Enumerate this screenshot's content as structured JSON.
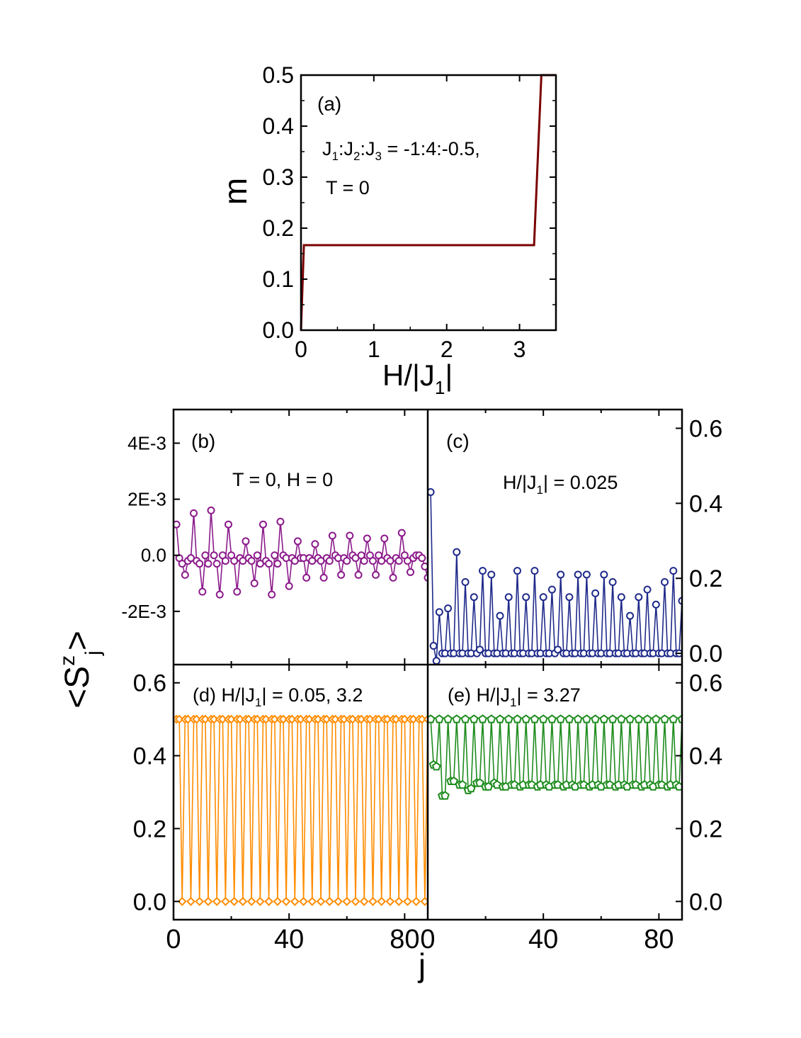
{
  "chart_data": [
    {
      "id": "a",
      "type": "line",
      "panel_label": "(a)",
      "annotations": [
        "J1:J2:J3 = -1:4:-0.5,",
        "T = 0"
      ],
      "xlabel": "H/|J1|",
      "ylabel": "m",
      "xlim": [
        0,
        3.5
      ],
      "ylim": [
        0,
        0.5
      ],
      "xticks": [
        0,
        1,
        2,
        3
      ],
      "xtick_labels": [
        "0",
        "1",
        "2",
        "3"
      ],
      "yticks": [
        0,
        0.1,
        0.2,
        0.3,
        0.4,
        0.5
      ],
      "ytick_labels": [
        "0.0",
        "0.1",
        "0.2",
        "0.3",
        "0.4",
        "0.5"
      ],
      "color": "#7a0000",
      "series": [
        {
          "x": [
            0,
            0.04,
            0.04,
            3.2,
            3.3,
            3.3,
            3.5
          ],
          "y": [
            0,
            0.1667,
            0.1667,
            0.1667,
            0.5,
            0.5,
            0.5
          ]
        }
      ]
    },
    {
      "id": "b",
      "type": "line",
      "panel_label": "(b)",
      "annotations": [
        "T = 0, H = 0"
      ],
      "xlim": [
        0,
        88
      ],
      "ylim": [
        -0.0039,
        0.0052
      ],
      "yticks": [
        -0.002,
        0,
        0.002,
        0.004
      ],
      "ytick_labels": [
        "-2E-3",
        "0.0",
        "2E-3",
        "4E-3"
      ],
      "color": "#8b1a8b",
      "marker": "circle",
      "series": [
        {
          "values": [
            0.0011,
            -0.0001,
            -0.0003,
            -0.0007,
            -0.0002,
            -0.0001,
            0.0015,
            -0.0002,
            -0.0003,
            -0.0013,
            0,
            -0.0003,
            0.0016,
            0,
            -0.0003,
            -0.0014,
            0,
            -0.0002,
            0.0011,
            0,
            -0.0002,
            -0.0013,
            -0.0001,
            -0.0002,
            0.0005,
            -0.0001,
            -0.0002,
            -0.001,
            0,
            -0.0003,
            0.0011,
            -0.0002,
            -0.0003,
            -0.0014,
            0,
            -0.0003,
            0.0012,
            0,
            -0.0001,
            -0.0011,
            -0.0001,
            -0.0002,
            0.0005,
            -0.0001,
            -0.0001,
            -0.0008,
            -0.0001,
            -0.0002,
            0.0004,
            -0.0001,
            -0.0002,
            -0.0008,
            -0.0001,
            -0.0002,
            0.0007,
            0,
            -0.0001,
            -0.0007,
            -0.0001,
            -0.0002,
            0.0007,
            0,
            -0.0001,
            -0.0007,
            0,
            -0.0002,
            0.0006,
            0,
            -0.0002,
            -0.0007,
            0,
            -0.0002,
            0.0006,
            -0.0001,
            -0.0002,
            -0.0008,
            -0.0001,
            -0.0002,
            0.0008,
            0,
            -0.0002,
            -0.0006,
            -0.0001,
            0,
            0,
            -0.0001,
            -0.0004,
            -0.0008,
            -0.0001,
            0.0022,
            -0.0003,
            -0.0015
          ]
        }
      ]
    },
    {
      "id": "c",
      "type": "line",
      "panel_label": "(c)",
      "annotations": [
        "H/|J1| = 0.025"
      ],
      "xlim": [
        0,
        88
      ],
      "ylim": [
        -0.03,
        0.65
      ],
      "yticks": [
        0,
        0.2,
        0.4,
        0.6
      ],
      "ytick_labels": [
        "0.0",
        "0.2",
        "0.4",
        "0.6"
      ],
      "color": "#1f2a8a",
      "marker": "circle",
      "series": [
        {
          "values": [
            0.43,
            0.02,
            -0.02,
            0.11,
            0,
            0,
            0.12,
            0,
            0,
            0.27,
            0,
            0,
            0.19,
            0,
            0,
            0.15,
            0,
            0.01,
            0.22,
            0,
            0,
            0.21,
            0,
            0,
            0.1,
            0,
            0,
            0.15,
            0,
            0,
            0.22,
            0,
            0,
            0.15,
            0,
            0,
            0.22,
            0,
            0,
            0.15,
            0,
            0,
            0.17,
            0,
            0.01,
            0.21,
            0,
            0,
            0.15,
            0,
            0,
            0.21,
            0,
            0,
            0.21,
            0,
            0,
            0.16,
            0,
            0,
            0.21,
            0,
            0,
            0.19,
            0,
            0,
            0.15,
            0,
            0,
            0.1,
            0,
            0,
            0.15,
            0,
            0,
            0.17,
            0,
            0,
            0.13,
            0,
            0,
            0.19,
            0,
            0,
            0.22,
            0,
            0,
            0.14,
            0,
            0.22
          ]
        }
      ]
    },
    {
      "id": "d",
      "type": "line",
      "panel_label": "(d)",
      "annotations": [
        "H/|J1| = 0.05, 3.2"
      ],
      "xlim": [
        0,
        88
      ],
      "ylim": [
        -0.05,
        0.65
      ],
      "yticks": [
        0,
        0.2,
        0.4,
        0.6
      ],
      "ytick_labels": [
        "0.0",
        "0.2",
        "0.4",
        "0.6"
      ],
      "xticks": [
        0,
        40,
        80
      ],
      "xtick_labels": [
        "0",
        "40",
        "80"
      ],
      "color": "#ff8c00",
      "marker": "diamond",
      "series": [
        {
          "x_step": 1,
          "pattern": "alternating groups (2 at 0.5, 1 at 0.0)",
          "n": 88,
          "high": 0.5,
          "low": 0.0
        }
      ]
    },
    {
      "id": "e",
      "type": "line",
      "panel_label": "(e)",
      "annotations": [
        "H/|J1| = 3.27"
      ],
      "xlim": [
        0,
        88
      ],
      "ylim": [
        -0.05,
        0.65
      ],
      "yticks": [
        0,
        0.2,
        0.4,
        0.6
      ],
      "ytick_labels": [
        "0.0",
        "0.2",
        "0.4",
        "0.6"
      ],
      "xticks": [
        0,
        40,
        80
      ],
      "xtick_labels": [
        "0",
        "40",
        "80"
      ],
      "color": "#1e8c1e",
      "marker": "pentagon",
      "series": [
        {
          "values": [
            0.5,
            0.375,
            0.37,
            0.5,
            0.29,
            0.29,
            0.5,
            0.33,
            0.33,
            0.5,
            0.32,
            0.32,
            0.5,
            0.305,
            0.31,
            0.5,
            0.325,
            0.325,
            0.5,
            0.315,
            0.315,
            0.5,
            0.325,
            0.32,
            0.5,
            0.315,
            0.315,
            0.5,
            0.32,
            0.32,
            0.5,
            0.315,
            0.32,
            0.5,
            0.32,
            0.32,
            0.5,
            0.315,
            0.32,
            0.5,
            0.32,
            0.315,
            0.5,
            0.32,
            0.32,
            0.5,
            0.315,
            0.32,
            0.5,
            0.32,
            0.315,
            0.5,
            0.32,
            0.32,
            0.5,
            0.315,
            0.32,
            0.5,
            0.32,
            0.315,
            0.5,
            0.32,
            0.32,
            0.5,
            0.315,
            0.32,
            0.5,
            0.32,
            0.315,
            0.5,
            0.32,
            0.32,
            0.5,
            0.315,
            0.32,
            0.5,
            0.32,
            0.315,
            0.5,
            0.32,
            0.32,
            0.5,
            0.315,
            0.32,
            0.5,
            0.32,
            0.315,
            0.5
          ]
        }
      ]
    }
  ],
  "shared": {
    "ylabel": "<S",
    "ylabel_sup": "z",
    "ylabel_sub": "j",
    "ylabel_close": ">",
    "xlabel": "j"
  }
}
